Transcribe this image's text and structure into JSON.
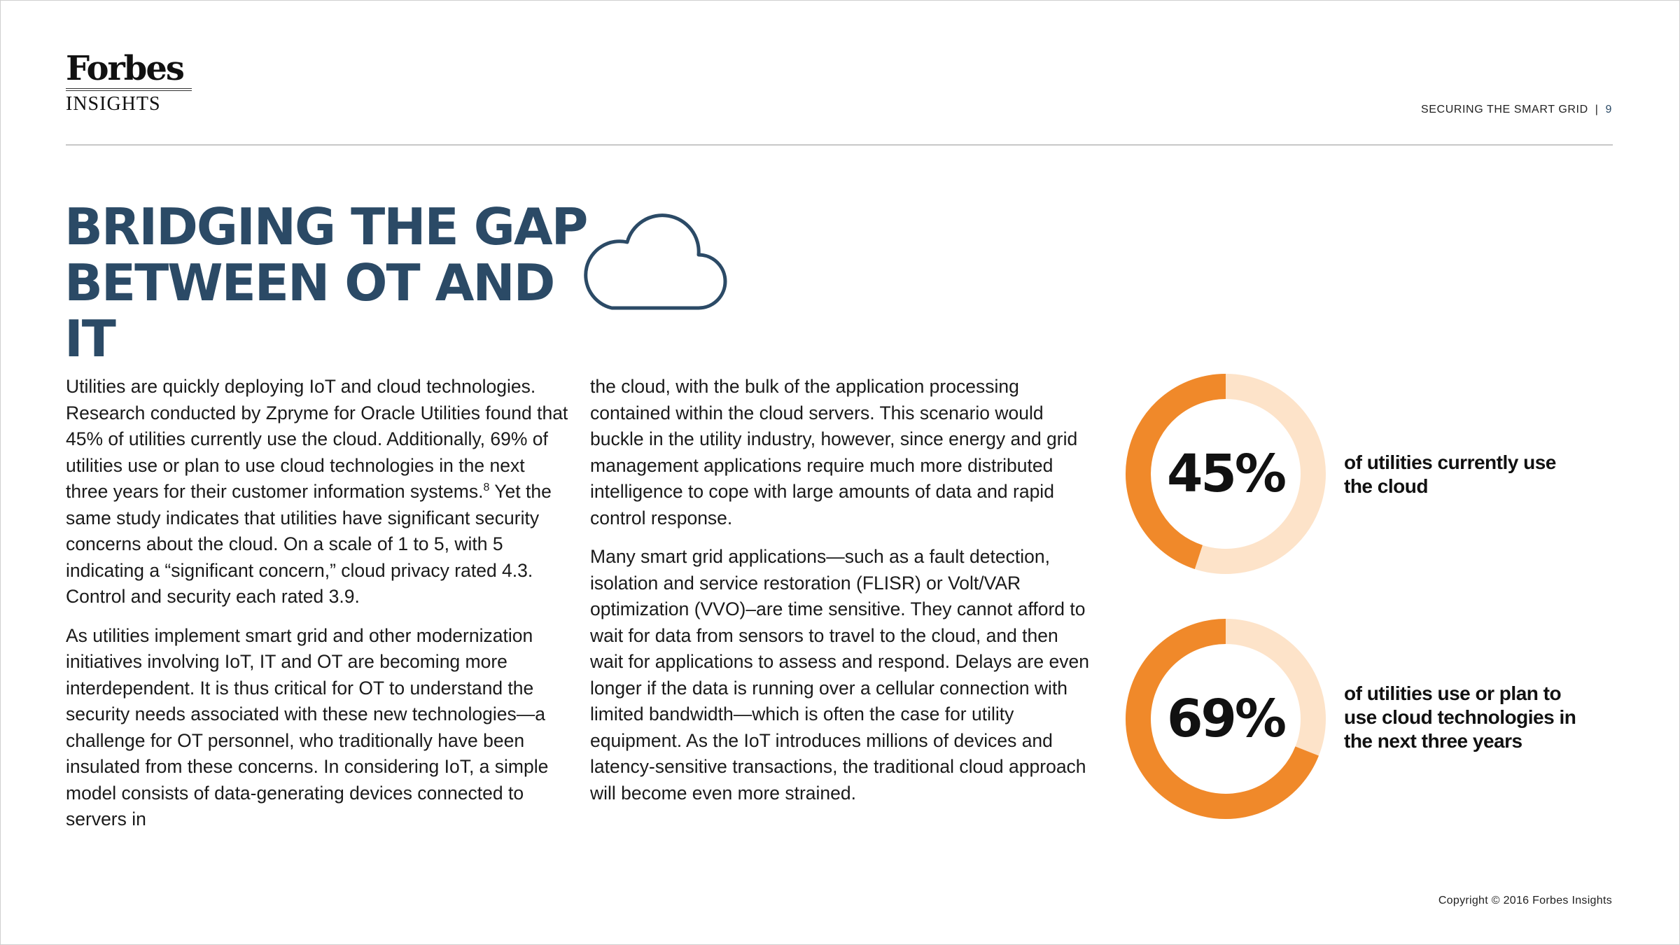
{
  "header": {
    "logo_main": "Forbes",
    "logo_sub": "INSIGHTS",
    "section": "SECURING THE SMART GRID",
    "separator": "|",
    "page_number": "9"
  },
  "title": {
    "line1": "BRIDGING THE GAP",
    "line2": "BETWEEN OT AND IT"
  },
  "icons": {
    "title_icon": "cloud-icon"
  },
  "body": {
    "col1_p1": "Utilities are quickly deploying IoT and cloud technologies. Research conducted by Zpryme for Oracle Utilities found that 45% of utilities currently use the cloud. Additionally, 69% of utilities use or plan to use cloud technologies in the next three years for their customer information systems.",
    "col1_p1_footnote": "8",
    "col1_p1_cont": " Yet the same study indicates that utilities have significant security concerns about the cloud. On a scale of 1 to 5, with 5 indicating a “significant concern,” cloud privacy rated 4.3. Control and security each rated 3.9.",
    "col1_p2": "As utilities implement smart grid and other modernization initiatives involving IoT, IT and OT are becoming more interdependent. It is thus critical for OT to understand the security needs associated with these new technologies—a challenge for OT personnel, who traditionally have been insulated from these concerns. In considering IoT, a simple model consists of data-generating devices connected to servers in",
    "col2_p1": "the cloud, with the bulk of the application processing contained within the cloud servers. This scenario would buckle in the utility industry, however, since energy and grid management applications require much more distributed intelligence to cope with large amounts of data and rapid control response.",
    "col2_p2": "Many smart grid applications—such as a fault detection, isolation and service restoration (FLISR) or Volt/VAR optimization (VVO)–are time sensitive. They cannot afford to wait for data from sensors to travel to the cloud, and then wait for applications to assess and respond. Delays are even longer if the data is running over a cellular connection with limited bandwidth—which is often the case for utility equipment. As the IoT introduces millions of devices and latency-sensitive transactions, the traditional cloud approach will become even more strained."
  },
  "colors": {
    "accent_dark_blue": "#2b4a66",
    "donut_orange": "#f0892a",
    "donut_light": "#fde3c9"
  },
  "chart_data": [
    {
      "type": "pie",
      "style": "donut",
      "values": [
        45,
        55
      ],
      "label": "45%",
      "caption": "of utilities currently use the cloud"
    },
    {
      "type": "pie",
      "style": "donut",
      "values": [
        69,
        31
      ],
      "label": "69%",
      "caption": "of utilities use or plan to use cloud technologies in the next three years"
    }
  ],
  "footer": {
    "copyright": "Copyright © 2016 Forbes Insights"
  }
}
